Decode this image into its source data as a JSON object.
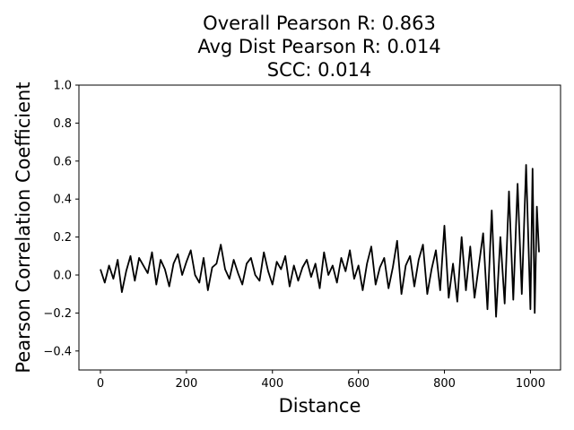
{
  "chart_data": {
    "type": "line",
    "title": [
      "Overall Pearson R: 0.863",
      "Avg Dist Pearson R: 0.014",
      "SCC: 0.014"
    ],
    "xlabel": "Distance",
    "ylabel": "Pearson Correlation Coefficient",
    "xlim": [
      -50,
      1070
    ],
    "ylim": [
      -0.5,
      1.0
    ],
    "xticks": [
      0,
      200,
      400,
      600,
      800,
      1000
    ],
    "xtick_labels": [
      "0",
      "200",
      "400",
      "600",
      "800",
      "1000"
    ],
    "yticks": [
      -0.4,
      -0.2,
      0.0,
      0.2,
      0.4,
      0.6,
      0.8,
      1.0
    ],
    "ytick_labels": [
      "−0.4",
      "−0.2",
      "0.0",
      "0.2",
      "0.4",
      "0.6",
      "0.8",
      "1.0"
    ],
    "grid": false,
    "line_color": "#000000",
    "series": [
      {
        "x": [
          0,
          10,
          20,
          30,
          40,
          50,
          60,
          70,
          80,
          90,
          100,
          110,
          120,
          130,
          140,
          150,
          160,
          170,
          180,
          190,
          200,
          210,
          220,
          230,
          240,
          250,
          260,
          270,
          280,
          290,
          300,
          310,
          320,
          330,
          340,
          350,
          360,
          370,
          380,
          390,
          400,
          410,
          420,
          430,
          440,
          450,
          460,
          470,
          480,
          490,
          500,
          510,
          520,
          530,
          540,
          550,
          560,
          570,
          580,
          590,
          600,
          610,
          620,
          630,
          640,
          650,
          660,
          670,
          680,
          690,
          700,
          710,
          720,
          730,
          740,
          750,
          760,
          770,
          780,
          790,
          800,
          810,
          820,
          830,
          840,
          850,
          860,
          870,
          880,
          890,
          900,
          910,
          920,
          930,
          940,
          950,
          960,
          970,
          980,
          990,
          1000,
          1005,
          1010,
          1015,
          1020
        ],
        "values": [
          0.03,
          -0.04,
          0.05,
          -0.02,
          0.08,
          -0.09,
          0.02,
          0.1,
          -0.03,
          0.09,
          0.05,
          0.01,
          0.12,
          -0.05,
          0.08,
          0.03,
          -0.06,
          0.06,
          0.11,
          0.0,
          0.07,
          0.13,
          0.0,
          -0.04,
          0.09,
          -0.08,
          0.04,
          0.06,
          0.16,
          0.03,
          -0.02,
          0.08,
          0.01,
          -0.05,
          0.06,
          0.09,
          0.0,
          -0.03,
          0.12,
          0.02,
          -0.05,
          0.07,
          0.03,
          0.1,
          -0.06,
          0.05,
          -0.03,
          0.04,
          0.08,
          -0.01,
          0.06,
          -0.07,
          0.12,
          0.0,
          0.05,
          -0.04,
          0.09,
          0.02,
          0.13,
          -0.02,
          0.05,
          -0.08,
          0.06,
          0.15,
          -0.05,
          0.04,
          0.09,
          -0.07,
          0.04,
          0.18,
          -0.1,
          0.05,
          0.1,
          -0.06,
          0.08,
          0.16,
          -0.1,
          0.03,
          0.13,
          -0.08,
          0.26,
          -0.12,
          0.06,
          -0.14,
          0.2,
          -0.08,
          0.15,
          -0.12,
          0.05,
          0.22,
          -0.18,
          0.34,
          -0.22,
          0.2,
          -0.15,
          0.44,
          -0.13,
          0.48,
          -0.1,
          0.58,
          -0.18,
          0.56,
          -0.2,
          0.36,
          0.12
        ]
      }
    ]
  }
}
